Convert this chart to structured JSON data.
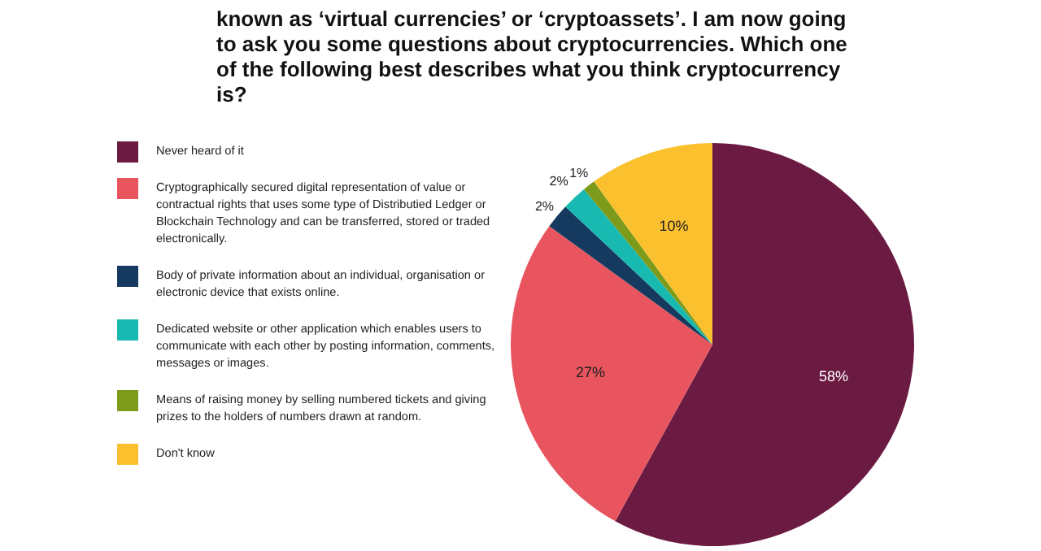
{
  "chart_data": {
    "type": "pie",
    "title": "known as ‘virtual currencies’ or ‘cryptoassets’. I am now going to ask you some questions about cryptocurrencies. Which one of the following best describes what you think cryptocurrency is?",
    "categories": [
      "Never heard of it",
      "Cryptographically secured digital representation of value or contractual rights that uses some type of Distributied Ledger or Blockchain Technology and can be transferred, stored or traded electronically.",
      "Body of private information about an individual, organisation or electronic device that exists online.",
      "Dedicated website or other application which enables users to communicate with each other by posting information, comments, messages or images.",
      "Means of raising money by selling numbered tickets and giving prizes to the holders of numbers drawn at random.",
      "Don't know"
    ],
    "values": [
      58,
      27,
      2,
      2,
      1,
      10
    ],
    "colors": [
      "#6b1a42",
      "#e8555e",
      "#163a5f",
      "#17b9b0",
      "#7d9a1a",
      "#fbc02d"
    ],
    "value_labels": [
      "58%",
      "27%",
      "2%",
      "2%",
      "1%",
      "10%"
    ],
    "legend": "left"
  }
}
